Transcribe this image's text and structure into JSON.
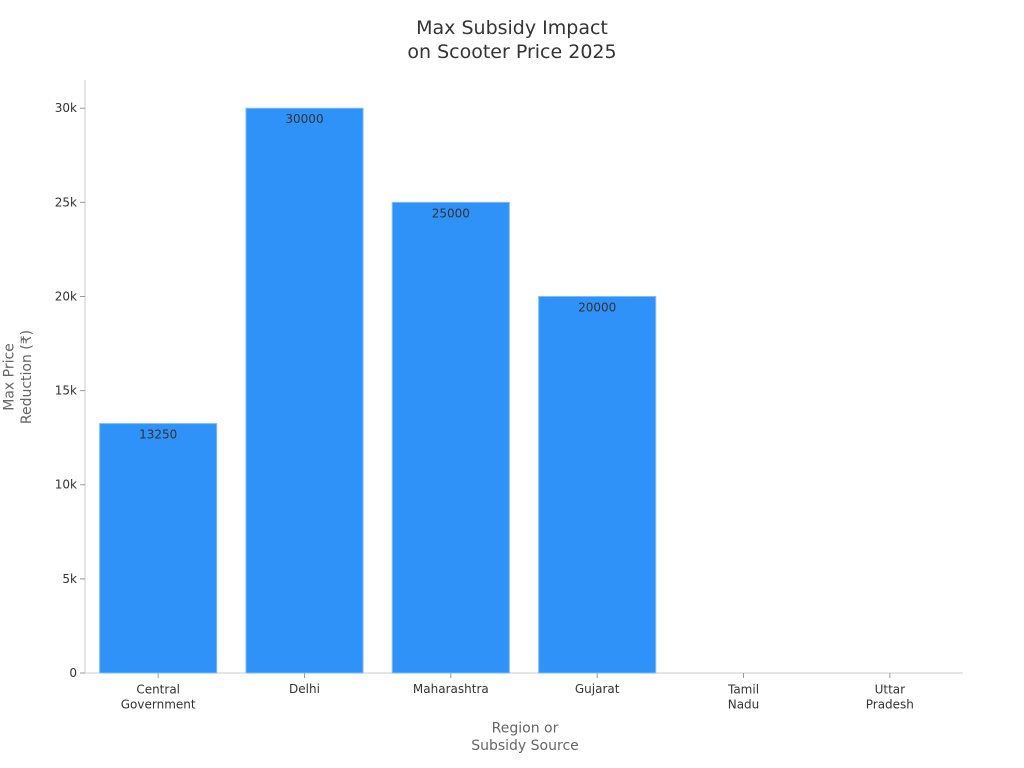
{
  "chart_data": {
    "type": "bar",
    "title": "Max Subsidy Impact\non Scooter Price 2025",
    "x_label": "Region or\nSubsidy Source",
    "y_label": "Max Price\nReduction (₹)",
    "categories": [
      "Central\nGovernment",
      "Delhi",
      "Maharashtra",
      "Gujarat",
      "Tamil\nNadu",
      "Uttar\nPradesh"
    ],
    "values": [
      13250,
      30000,
      25000,
      20000,
      null,
      null
    ],
    "color": "#2f92f8",
    "ylim": [
      0,
      31500
    ],
    "yticks": [
      0,
      {
        "value": 5000,
        "label": "5k"
      },
      {
        "value": 10000,
        "label": "10k"
      },
      {
        "value": 15000,
        "label": "15k"
      },
      {
        "value": 20000,
        "label": "20k"
      },
      {
        "value": 25000,
        "label": "25k"
      },
      {
        "value": 30000,
        "label": "30k"
      }
    ],
    "grid": false
  }
}
